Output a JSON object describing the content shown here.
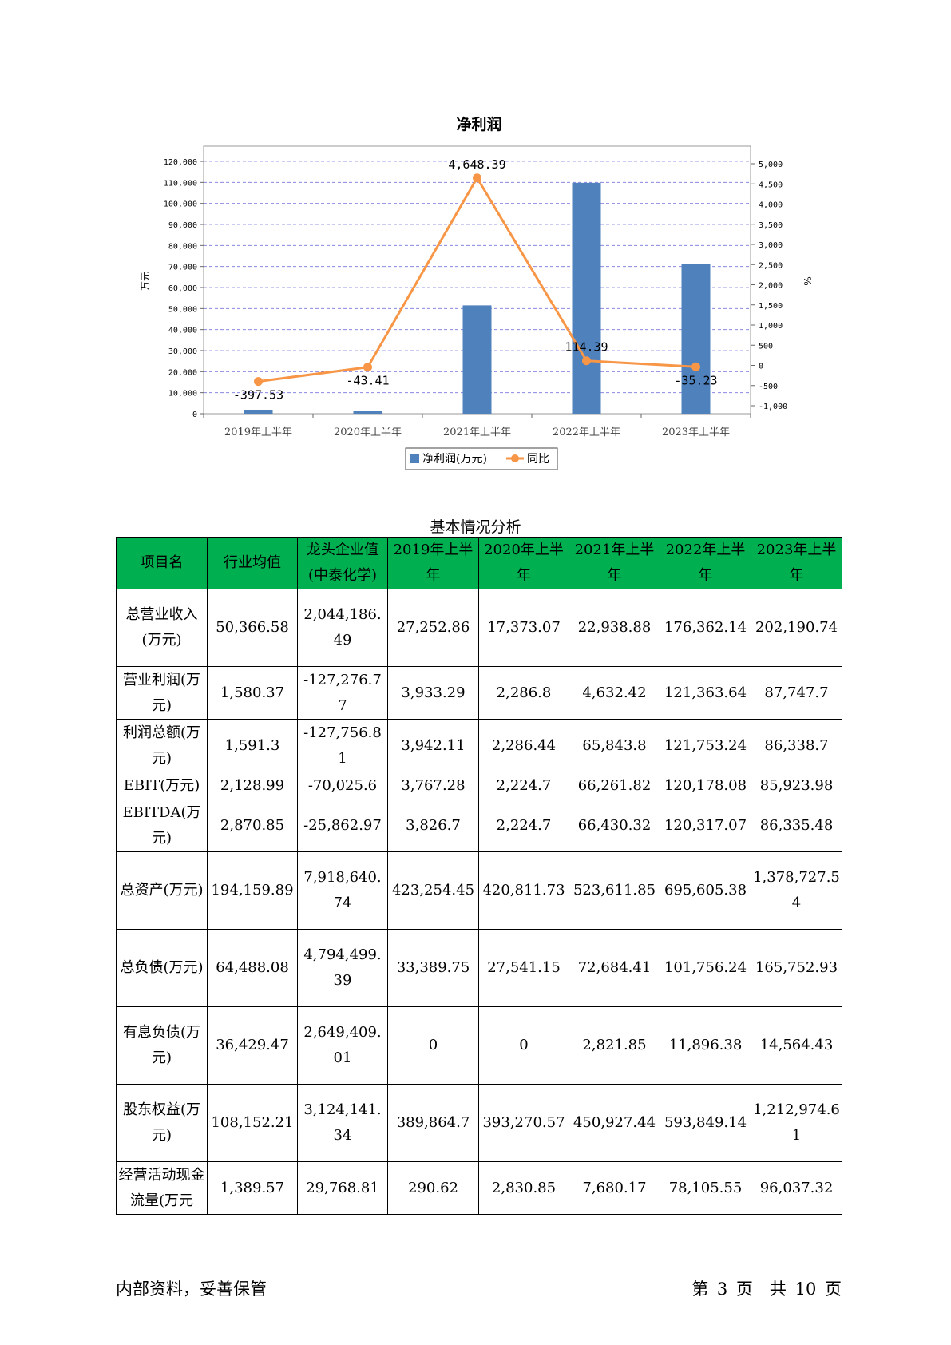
{
  "chart_data": {
    "type": "bar",
    "title": "净利润",
    "ylabel_left": "万元",
    "ylabel_right": "%",
    "categories": [
      "2019年上半年",
      "2020年上半年",
      "2021年上半年",
      "2022年上半年",
      "2023年上半年"
    ],
    "series": [
      {
        "name": "净利润(万元)",
        "type": "bar",
        "axis": "left",
        "color": "#4f81bd",
        "values": [
          1900,
          1300,
          51500,
          109800,
          71200
        ]
      },
      {
        "name": "同比",
        "type": "line",
        "axis": "right",
        "color": "#f79646",
        "values": [
          -397.53,
          -43.41,
          4648.39,
          114.39,
          -35.23
        ],
        "labels": [
          "-397.53",
          "-43.41",
          "4,648.39",
          "114.39",
          "-35.23"
        ]
      }
    ],
    "ylim_left": [
      0,
      120000
    ],
    "yticks_left": [
      "0",
      "10,000",
      "20,000",
      "30,000",
      "40,000",
      "50,000",
      "60,000",
      "70,000",
      "80,000",
      "90,000",
      "100,000",
      "110,000",
      "120,000"
    ],
    "ylim_right": [
      -1000,
      5000
    ],
    "yticks_right": [
      "-1,000",
      "-500",
      "0",
      "500",
      "1,000",
      "1,500",
      "2,000",
      "2,500",
      "3,000",
      "3,500",
      "4,000",
      "4,500",
      "5,000"
    ],
    "grid": true,
    "legend": "bottom"
  },
  "table": {
    "caption": "基本情况分析",
    "headers": [
      "项目名",
      "行业均值",
      "龙头企业值(中泰化学)",
      "2019年上半年",
      "2020年上半年",
      "2021年上半年",
      "2022年上半年",
      "2023年上半年"
    ],
    "rows": [
      [
        "总营业收入(万元)",
        "50,366.58",
        "2,044,186.49",
        "27,252.86",
        "17,373.07",
        "22,938.88",
        "176,362.14",
        "202,190.74"
      ],
      [
        "营业利润(万元)",
        "1,580.37",
        "-127,276.77",
        "3,933.29",
        "2,286.8",
        "4,632.42",
        "121,363.64",
        "87,747.7"
      ],
      [
        "利润总额(万元)",
        "1,591.3",
        "-127,756.81",
        "3,942.11",
        "2,286.44",
        "65,843.8",
        "121,753.24",
        "86,338.7"
      ],
      [
        "EBIT(万元)",
        "2,128.99",
        "-70,025.6",
        "3,767.28",
        "2,224.7",
        "66,261.82",
        "120,178.08",
        "85,923.98"
      ],
      [
        "EBITDA(万元)",
        "2,870.85",
        "-25,862.97",
        "3,826.7",
        "2,224.7",
        "66,430.32",
        "120,317.07",
        "86,335.48"
      ],
      [
        "总资产(万元)",
        "194,159.89",
        "7,918,640.74",
        "423,254.45",
        "420,811.73",
        "523,611.85",
        "695,605.38",
        "1,378,727.54"
      ],
      [
        "总负债(万元)",
        "64,488.08",
        "4,794,499.39",
        "33,389.75",
        "27,541.15",
        "72,684.41",
        "101,756.24",
        "165,752.93"
      ],
      [
        "有息负债(万元)",
        "36,429.47",
        "2,649,409.01",
        "0",
        "0",
        "2,821.85",
        "11,896.38",
        "14,564.43"
      ],
      [
        "股东权益(万元)",
        "108,152.21",
        "3,124,141.34",
        "389,864.7",
        "393,270.57",
        "450,927.44",
        "593,849.14",
        "1,212,974.61"
      ],
      [
        "经营活动现金流量(万元",
        "1,389.57",
        "29,768.81",
        "290.62",
        "2,830.85",
        "7,680.17",
        "78,105.55",
        "96,037.32"
      ]
    ]
  },
  "footer": {
    "left": "内部资料，妥善保管",
    "right": "第 3 页　共 10 页"
  }
}
